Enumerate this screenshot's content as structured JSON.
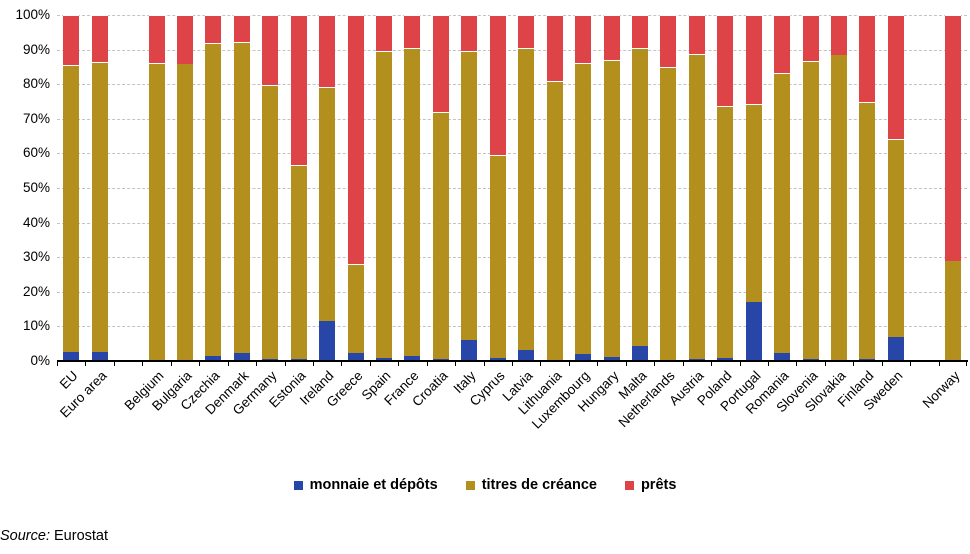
{
  "source": {
    "label": "Source:",
    "text": " Eurostat"
  },
  "chart_data": {
    "type": "bar",
    "stacking": "percent",
    "title": "",
    "xlabel": "",
    "ylabel": "",
    "ylim": [
      0,
      100
    ],
    "y_ticks": [
      "0%",
      "10%",
      "20%",
      "30%",
      "40%",
      "50%",
      "60%",
      "70%",
      "80%",
      "90%",
      "100%"
    ],
    "grid": "horizontal-dashed",
    "legend_position": "bottom",
    "gaps_after": [
      "Euro area",
      "Sweden"
    ],
    "categories": [
      "EU",
      "Euro area",
      "Belgium",
      "Bulgaria",
      "Czechia",
      "Denmark",
      "Germany",
      "Estonia",
      "Ireland",
      "Greece",
      "Spain",
      "France",
      "Croatia",
      "Italy",
      "Cyprus",
      "Latvia",
      "Lithuania",
      "Luxembourg",
      "Hungary",
      "Malta",
      "Netherlands",
      "Austria",
      "Poland",
      "Portugal",
      "Romania",
      "Slovenia",
      "Slovakia",
      "Finland",
      "Sweden",
      "Norway"
    ],
    "series": [
      {
        "name": "monnaie et dépôts",
        "color": "#2846a8",
        "values": [
          2.6,
          2.6,
          0.2,
          0.0,
          1.4,
          2.2,
          0.5,
          0.6,
          11.6,
          2.4,
          0.9,
          1.5,
          0.5,
          6.0,
          1.0,
          3.3,
          0.4,
          1.9,
          1.2,
          4.4,
          0.2,
          0.6,
          0.8,
          17.0,
          2.2,
          0.6,
          0.0,
          0.7,
          6.9,
          0.0
        ]
      },
      {
        "name": "titres de créance",
        "color": "#b3901e",
        "values": [
          82.9,
          83.7,
          85.8,
          85.8,
          90.6,
          90.0,
          79.3,
          56.1,
          67.5,
          25.5,
          88.6,
          88.9,
          71.5,
          83.5,
          58.4,
          87.3,
          80.4,
          84.3,
          85.9,
          86.0,
          84.7,
          88.1,
          72.9,
          57.2,
          81.1,
          86.2,
          88.4,
          74.2,
          57.4,
          28.9
        ]
      },
      {
        "name": "prêts",
        "color": "#dd4347",
        "values": [
          14.5,
          13.7,
          14.0,
          14.2,
          8.0,
          7.8,
          20.2,
          43.3,
          20.9,
          72.1,
          10.5,
          9.6,
          28.0,
          10.5,
          40.6,
          9.4,
          19.2,
          13.8,
          12.9,
          9.6,
          15.1,
          11.3,
          26.3,
          25.8,
          16.7,
          13.2,
          11.6,
          25.1,
          35.7,
          71.1
        ]
      }
    ]
  }
}
